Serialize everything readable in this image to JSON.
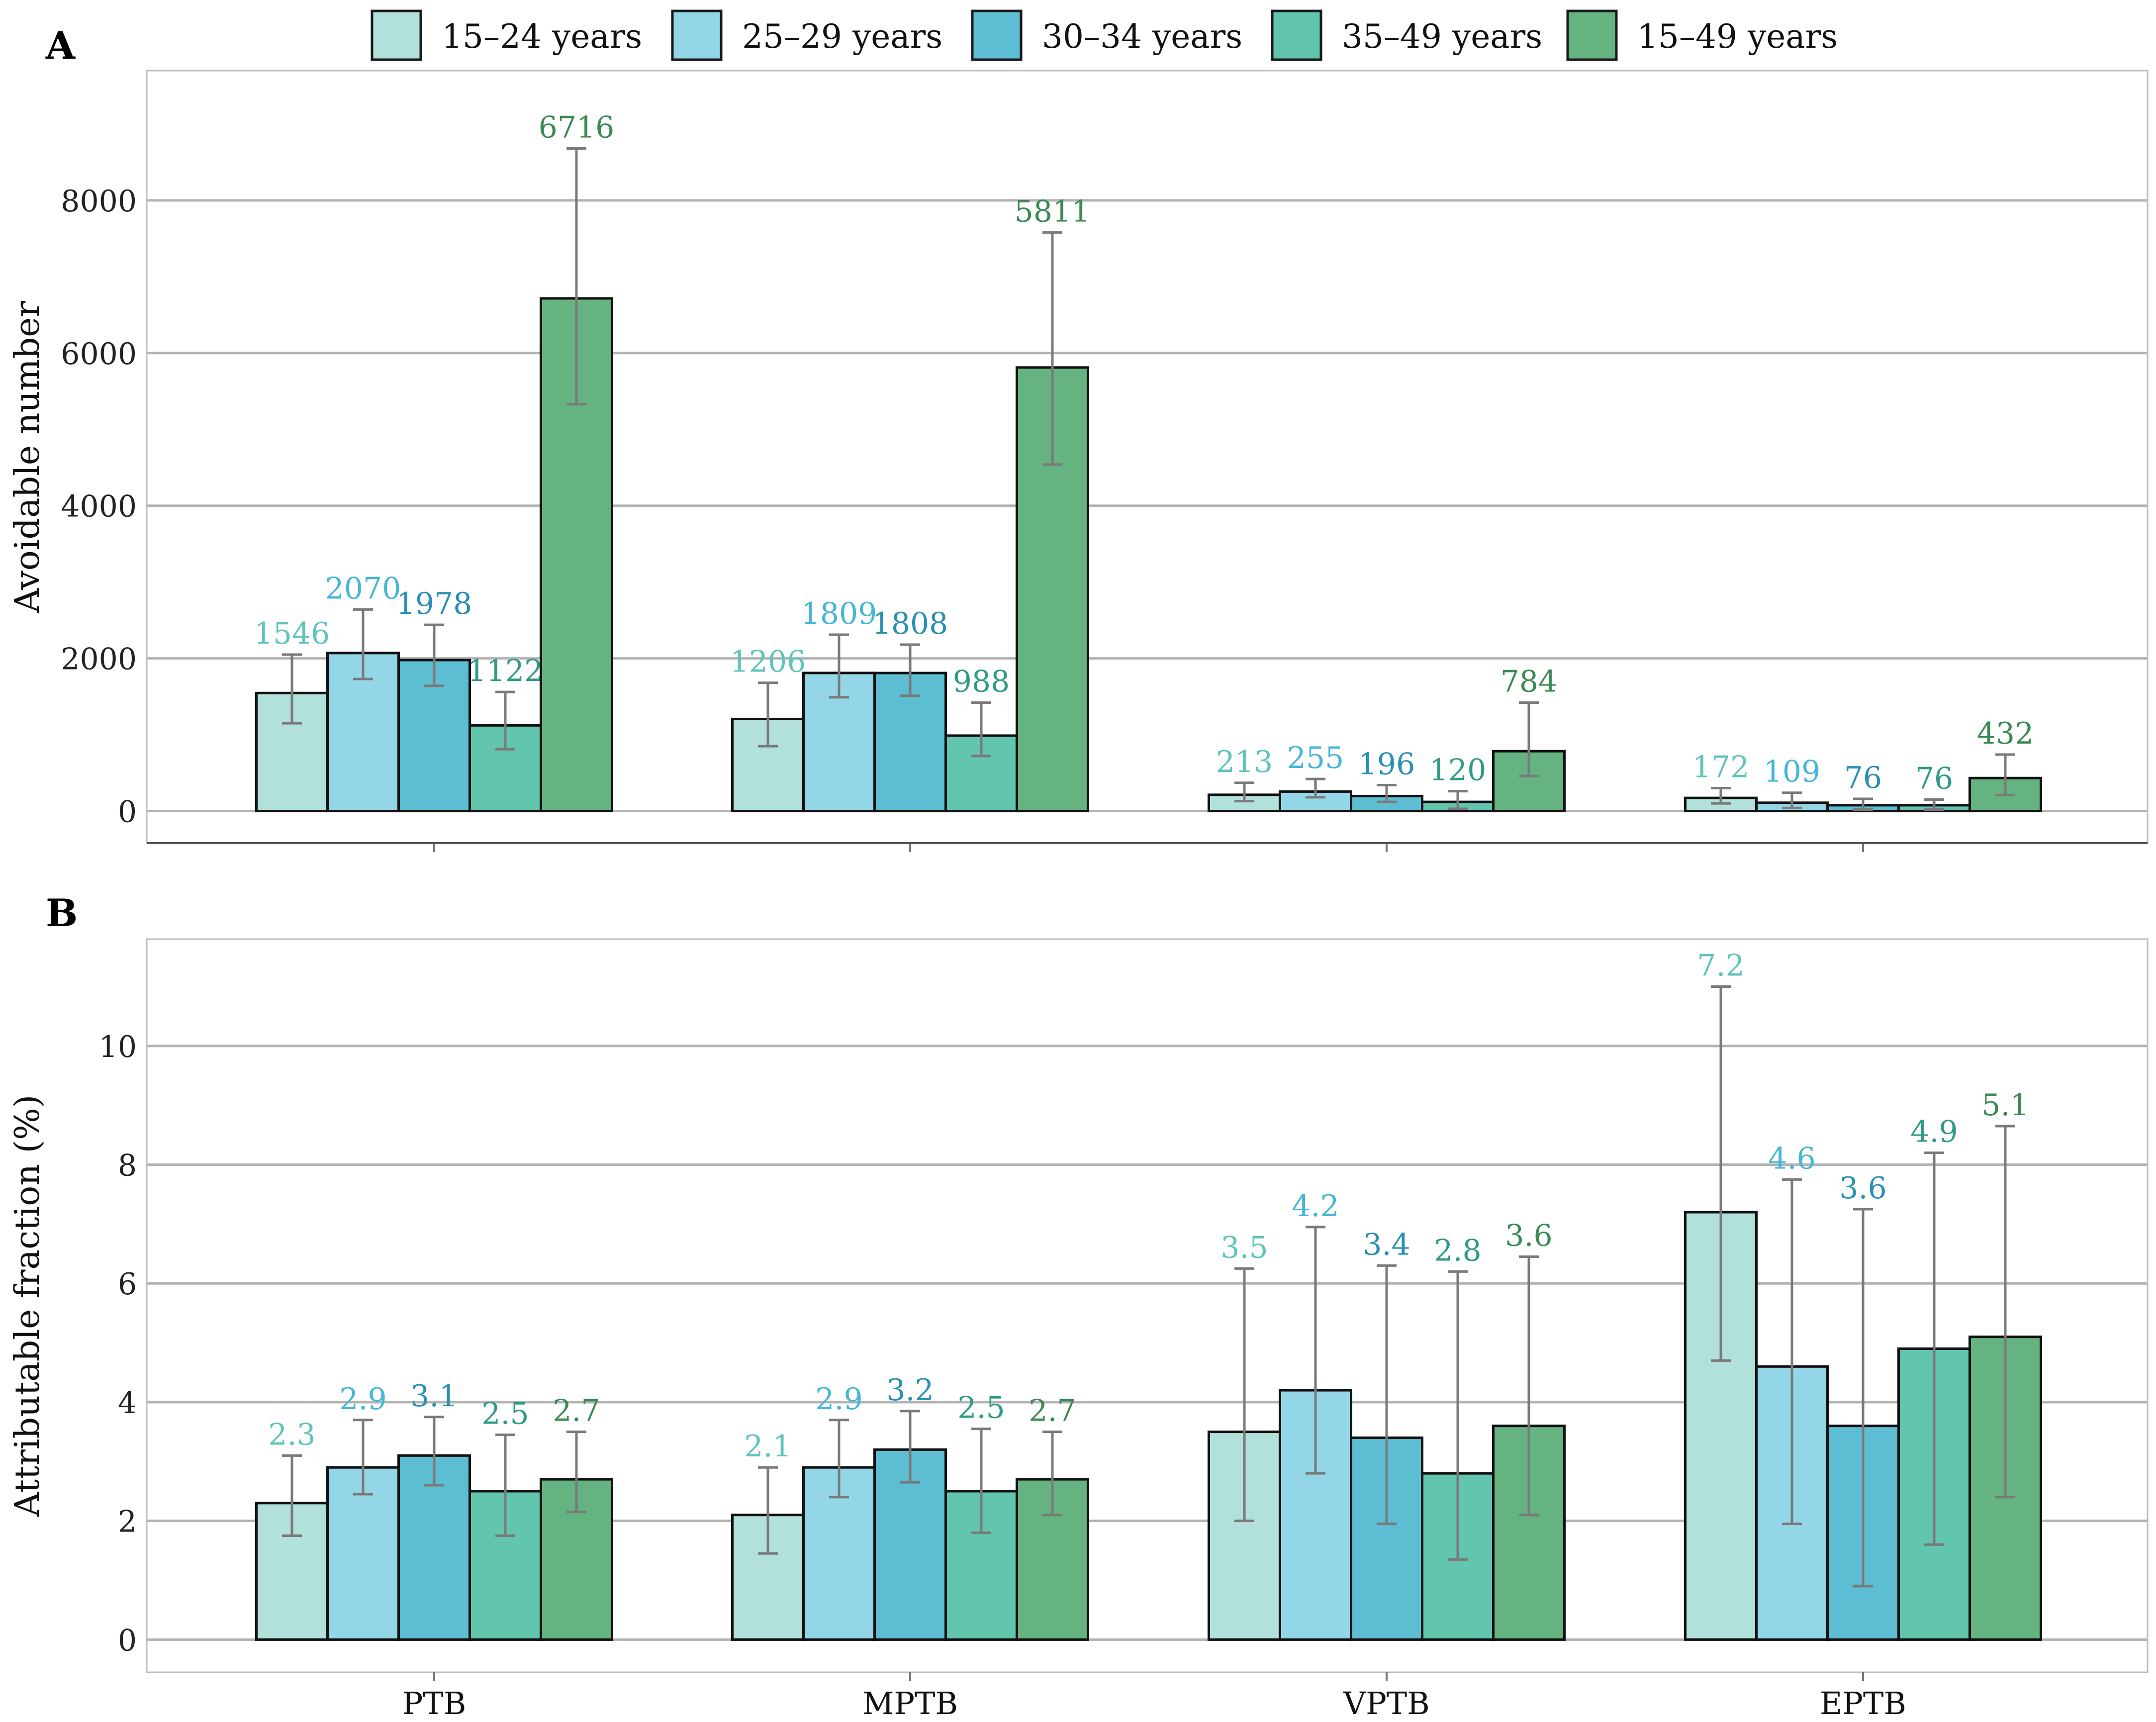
{
  "legend": {
    "entries": [
      {
        "label": "15–24 years",
        "color": "#b2e0da",
        "label_color": "#5fc4bb"
      },
      {
        "label": "25–29 years",
        "color": "#93d6e7",
        "label_color": "#45b6d6"
      },
      {
        "label": "30–34 years",
        "color": "#5dbdd2",
        "label_color": "#2a8fb4"
      },
      {
        "label": "35–49 years",
        "color": "#62c5ae",
        "label_color": "#2f9a86"
      },
      {
        "label": "15–49 years",
        "color": "#64b380",
        "label_color": "#3a8a52"
      }
    ]
  },
  "chart_data": [
    {
      "panel": "A",
      "type": "bar",
      "title": "",
      "xlabel": "",
      "ylabel": "Avoidable number",
      "ylim": [
        -420,
        9700
      ],
      "yticks": [
        0,
        2000,
        4000,
        6000,
        8000
      ],
      "show_x_tick_labels": false,
      "decimals": 0,
      "categories": [
        "PTB",
        "MPTB",
        "VPTB",
        "EPTB"
      ],
      "series": [
        {
          "name": "15–24 years",
          "values": [
            1546,
            1206,
            213,
            172
          ],
          "ci_low": [
            1150,
            850,
            130,
            100
          ],
          "ci_high": [
            2050,
            1680,
            370,
            300
          ]
        },
        {
          "name": "25–29 years",
          "values": [
            2070,
            1809,
            255,
            109
          ],
          "ci_low": [
            1730,
            1490,
            180,
            40
          ],
          "ci_high": [
            2640,
            2310,
            420,
            240
          ]
        },
        {
          "name": "30–34 years",
          "values": [
            1978,
            1808,
            196,
            76
          ],
          "ci_low": [
            1640,
            1510,
            120,
            20
          ],
          "ci_high": [
            2440,
            2180,
            340,
            160
          ]
        },
        {
          "name": "35–49 years",
          "values": [
            1122,
            988,
            120,
            76
          ],
          "ci_low": [
            810,
            720,
            30,
            20
          ],
          "ci_high": [
            1560,
            1420,
            260,
            150
          ]
        },
        {
          "name": "15–49 years",
          "values": [
            6716,
            5811,
            784,
            432
          ],
          "ci_low": [
            5330,
            4540,
            460,
            210
          ],
          "ci_high": [
            8680,
            7580,
            1420,
            740
          ]
        }
      ]
    },
    {
      "panel": "B",
      "type": "bar",
      "title": "",
      "xlabel": "",
      "ylabel": "Attributable fraction (%)",
      "ylim": [
        -0.55,
        11.8
      ],
      "yticks": [
        0,
        2,
        4,
        6,
        8,
        10
      ],
      "show_x_tick_labels": true,
      "decimals": 1,
      "categories": [
        "PTB",
        "MPTB",
        "VPTB",
        "EPTB"
      ],
      "series": [
        {
          "name": "15–24 years",
          "values": [
            2.3,
            2.1,
            3.5,
            7.2
          ],
          "ci_low": [
            1.75,
            1.45,
            2.0,
            4.7
          ],
          "ci_high": [
            3.1,
            2.9,
            6.25,
            11.0
          ]
        },
        {
          "name": "25–29 years",
          "values": [
            2.9,
            2.9,
            4.2,
            4.6
          ],
          "ci_low": [
            2.45,
            2.4,
            2.8,
            1.95
          ],
          "ci_high": [
            3.7,
            3.7,
            6.95,
            7.75
          ]
        },
        {
          "name": "30–34 years",
          "values": [
            3.1,
            3.2,
            3.4,
            3.6
          ],
          "ci_low": [
            2.6,
            2.65,
            1.95,
            0.9
          ],
          "ci_high": [
            3.75,
            3.85,
            6.3,
            7.25
          ]
        },
        {
          "name": "35–49 years",
          "values": [
            2.5,
            2.5,
            2.8,
            4.9
          ],
          "ci_low": [
            1.75,
            1.8,
            1.35,
            1.6
          ],
          "ci_high": [
            3.45,
            3.55,
            6.2,
            8.2
          ]
        },
        {
          "name": "15–49 years",
          "values": [
            2.7,
            2.7,
            3.6,
            5.1
          ],
          "ci_low": [
            2.15,
            2.1,
            2.1,
            2.4
          ],
          "ci_high": [
            3.5,
            3.5,
            6.45,
            8.65
          ]
        }
      ]
    }
  ]
}
